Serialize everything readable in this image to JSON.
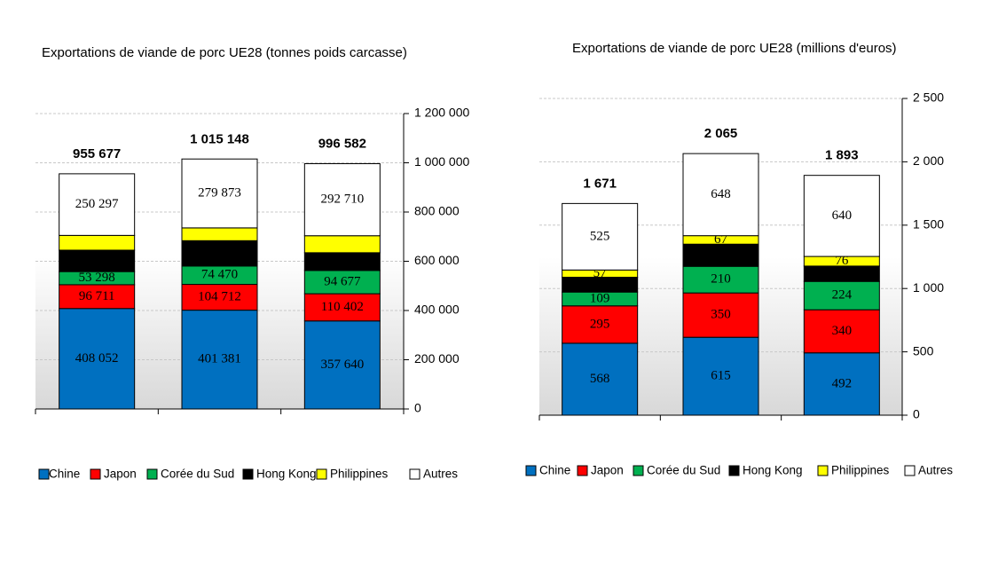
{
  "chart_data": [
    {
      "type": "stacked_bar",
      "title": "Exportations de viande de porc UE28 (tonnes poids carcasse)",
      "categories": [
        null,
        null,
        null
      ],
      "series": [
        {
          "name": "Chine",
          "color": "#0070c0",
          "values": [
            408052,
            401381,
            357640
          ],
          "value_labels": [
            "408 052",
            "401 381",
            "357 640"
          ]
        },
        {
          "name": "Japon",
          "color": "#ff0000",
          "values": [
            96711,
            104712,
            110402
          ],
          "value_labels": [
            "96 711",
            "104 712",
            "110 402"
          ]
        },
        {
          "name": "Corée du Sud",
          "color": "#00b050",
          "values": [
            53298,
            74470,
            94677
          ],
          "value_labels": [
            "53 298",
            "74 470",
            "94 677"
          ]
        },
        {
          "name": "Hong Kong",
          "color": "#000000",
          "values": [
            87000,
            103000,
            72000
          ]
        },
        {
          "name": "Philippines",
          "color": "#ffff00",
          "values": [
            60000,
            52000,
            69000
          ]
        },
        {
          "name": "Autres",
          "color": "#ffffff",
          "values": [
            250297,
            279873,
            292710
          ],
          "value_labels": [
            "250 297",
            "279 873",
            "292 710"
          ]
        }
      ],
      "totals": [
        955677,
        1015148,
        996582
      ],
      "totals_labels": [
        "955 677",
        "1 015 148",
        "996 582"
      ],
      "ylim": [
        0,
        1200000
      ],
      "yticks": [
        0,
        {
          "value": 200000,
          "label": "200 000"
        },
        {
          "value": 400000,
          "label": "400 000"
        },
        {
          "value": 600000,
          "label": "600 000"
        },
        {
          "value": 800000,
          "label": "800 000"
        },
        {
          "value": 1000000,
          "label": "1 000 000"
        },
        {
          "value": 1200000,
          "label": "1 200 000"
        }
      ],
      "grid": true,
      "y_axis_side": "right",
      "legend": "bottom"
    },
    {
      "type": "stacked_bar",
      "title": "Exportations de viande de porc UE28 (millions d'euros)",
      "categories": [
        null,
        null,
        null
      ],
      "series": [
        {
          "name": "Chine",
          "color": "#0070c0",
          "values": [
            568,
            615,
            492
          ]
        },
        {
          "name": "Japon",
          "color": "#ff0000",
          "values": [
            295,
            350,
            340
          ]
        },
        {
          "name": "Corée du Sud",
          "color": "#00b050",
          "values": [
            109,
            210,
            224
          ]
        },
        {
          "name": "Hong Kong",
          "color": "#000000",
          "values": [
            117,
            175,
            121
          ]
        },
        {
          "name": "Philippines",
          "color": "#ffff00",
          "values": [
            57,
            67,
            76
          ]
        },
        {
          "name": "Autres",
          "color": "#ffffff",
          "values": [
            525,
            648,
            640
          ]
        }
      ],
      "totals": [
        1671,
        2065,
        1893
      ],
      "totals_labels": [
        "1 671",
        "2 065",
        "1 893"
      ],
      "ylim": [
        0,
        2500
      ],
      "yticks": [
        0,
        500,
        {
          "value": 1000,
          "label": "1 000"
        },
        {
          "value": 1500,
          "label": "1 500"
        },
        {
          "value": 2000,
          "label": "2 000"
        },
        {
          "value": 2500,
          "label": "2 500"
        }
      ],
      "grid": true,
      "y_axis_side": "right",
      "legend": "bottom"
    }
  ]
}
